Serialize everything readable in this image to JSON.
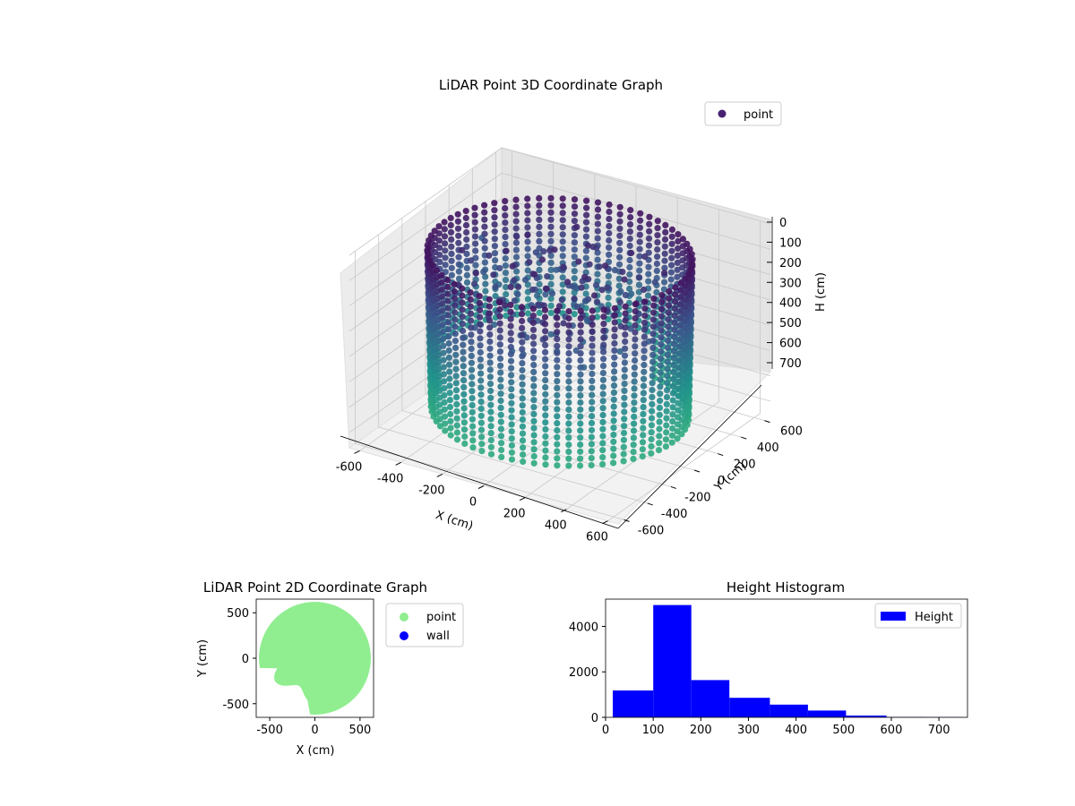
{
  "chart_data": [
    {
      "type": "scatter",
      "title": "LiDAR Point 3D Coordinate Graph",
      "projection": "3d",
      "xlabel": "X (cm)",
      "ylabel": "Y (cm)",
      "zlabel": "H (cm)",
      "xlim": [
        -650,
        650
      ],
      "ylim": [
        -650,
        650
      ],
      "zlim": [
        0,
        760
      ],
      "z_inverted": true,
      "x_ticks": [
        -600,
        -400,
        -200,
        0,
        200,
        400,
        600
      ],
      "y_ticks": [
        -600,
        -400,
        -200,
        0,
        200,
        400,
        600
      ],
      "z_ticks": [
        0,
        100,
        200,
        300,
        400,
        500,
        600,
        700
      ],
      "legend": [
        "point"
      ],
      "legend_position": "top-right",
      "grid": true,
      "colormap": "viridis",
      "colors": {
        "low": "#440154",
        "mid": "#31688e",
        "high": "#35b779",
        "legend_marker": "#482173"
      },
      "description_of_series": "ring of points along the wall at radius about 560, heights 50 to 700"
    },
    {
      "type": "scatter",
      "title": "LiDAR Point 2D Coordinate Graph",
      "xlabel": "X (cm)",
      "ylabel": "Y (cm)",
      "xlim": [
        -650,
        650
      ],
      "ylim": [
        -650,
        650
      ],
      "x_ticks": [
        -500,
        0,
        500
      ],
      "y_ticks": [
        -500,
        0,
        500
      ],
      "series": [
        {
          "name": "point",
          "color": "#90ee90"
        },
        {
          "name": "wall",
          "color": "#0000ff"
        }
      ],
      "legend_position": "outside-right"
    },
    {
      "type": "bar",
      "title": "Height Histogram",
      "xlabel": "",
      "ylabel": "",
      "bins": [
        [
          15,
          100
        ],
        [
          100,
          180
        ],
        [
          180,
          260
        ],
        [
          260,
          345
        ],
        [
          345,
          425
        ],
        [
          425,
          505
        ],
        [
          505,
          590
        ],
        [
          590,
          670
        ],
        [
          670,
          750
        ]
      ],
      "values": [
        1180,
        4940,
        1640,
        860,
        560,
        300,
        80,
        20,
        10
      ],
      "xlim": [
        0,
        760
      ],
      "ylim": [
        0,
        5200
      ],
      "x_ticks": [
        0,
        100,
        200,
        300,
        400,
        500,
        600,
        700
      ],
      "y_ticks": [
        0,
        2000,
        4000
      ],
      "legend": [
        "Height"
      ],
      "legend_position": "top-right",
      "color": "#0000ff"
    }
  ]
}
